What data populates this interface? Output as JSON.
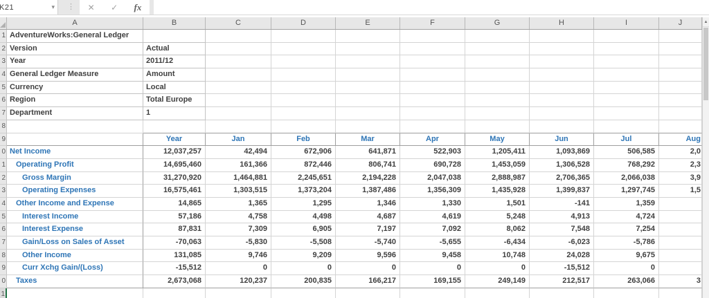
{
  "name_box": "K21",
  "formula_bar": {
    "cancel": "✕",
    "confirm": "✓",
    "fx": "fx",
    "value": ""
  },
  "column_headers": [
    "A",
    "B",
    "C",
    "D",
    "E",
    "F",
    "G",
    "H",
    "I",
    "J"
  ],
  "row_numbers_visible": [
    "1",
    "2",
    "3",
    "4",
    "5",
    "6",
    "7",
    "8",
    "9",
    "0",
    "1",
    "2",
    "3",
    "4",
    "5",
    "6",
    "7",
    "8",
    "9",
    "0",
    "1"
  ],
  "info": [
    {
      "label": "AdventureWorks:General Ledger",
      "value": ""
    },
    {
      "label": "Version",
      "value": "Actual"
    },
    {
      "label": "Year",
      "value": "2011/12"
    },
    {
      "label": "General Ledger Measure",
      "value": "Amount"
    },
    {
      "label": "Currency",
      "value": "Local"
    },
    {
      "label": "Region",
      "value": "Total Europe"
    },
    {
      "label": "Department",
      "value": "1"
    }
  ],
  "table": {
    "col_headers": [
      "Year",
      "Jan",
      "Feb",
      "Mar",
      "Apr",
      "May",
      "Jun",
      "Jul",
      "Aug"
    ],
    "rows": [
      {
        "label": "Net Income",
        "indent": 0,
        "values": [
          "12,037,257",
          "42,494",
          "672,906",
          "641,871",
          "522,903",
          "1,205,411",
          "1,093,869",
          "506,585",
          "2,0"
        ]
      },
      {
        "label": "Operating Profit",
        "indent": 1,
        "values": [
          "14,695,460",
          "161,366",
          "872,446",
          "806,741",
          "690,728",
          "1,453,059",
          "1,306,528",
          "768,292",
          "2,3"
        ]
      },
      {
        "label": "Gross Margin",
        "indent": 2,
        "values": [
          "31,270,920",
          "1,464,881",
          "2,245,651",
          "2,194,228",
          "2,047,038",
          "2,888,987",
          "2,706,365",
          "2,066,038",
          "3,9"
        ]
      },
      {
        "label": "Operating Expenses",
        "indent": 2,
        "values": [
          "16,575,461",
          "1,303,515",
          "1,373,204",
          "1,387,486",
          "1,356,309",
          "1,435,928",
          "1,399,837",
          "1,297,745",
          "1,5"
        ]
      },
      {
        "label": "Other Income and Expense",
        "indent": 1,
        "values": [
          "14,865",
          "1,365",
          "1,295",
          "1,346",
          "1,330",
          "1,501",
          "-141",
          "1,359",
          ""
        ]
      },
      {
        "label": "Interest Income",
        "indent": 2,
        "values": [
          "57,186",
          "4,758",
          "4,498",
          "4,687",
          "4,619",
          "5,248",
          "4,913",
          "4,724",
          ""
        ]
      },
      {
        "label": "Interest Expense",
        "indent": 2,
        "values": [
          "87,831",
          "7,309",
          "6,905",
          "7,197",
          "7,092",
          "8,062",
          "7,548",
          "7,254",
          ""
        ]
      },
      {
        "label": "Gain/Loss on Sales of Asset",
        "indent": 2,
        "values": [
          "-70,063",
          "-5,830",
          "-5,508",
          "-5,740",
          "-5,655",
          "-6,434",
          "-6,023",
          "-5,786",
          ""
        ]
      },
      {
        "label": "Other Income",
        "indent": 2,
        "values": [
          "131,085",
          "9,746",
          "9,209",
          "9,596",
          "9,458",
          "10,748",
          "24,028",
          "9,675",
          ""
        ]
      },
      {
        "label": "Curr Xchg Gain/(Loss)",
        "indent": 2,
        "values": [
          "-15,512",
          "0",
          "0",
          "0",
          "0",
          "0",
          "-15,512",
          "0",
          ""
        ]
      },
      {
        "label": "Taxes",
        "indent": 1,
        "values": [
          "2,673,068",
          "120,237",
          "200,835",
          "166,217",
          "169,155",
          "249,149",
          "212,517",
          "263,066",
          "3"
        ]
      }
    ]
  },
  "colors": {
    "accent_blue": "#2e75b6",
    "text_dark": "#3f3f3f",
    "selection_green": "#217346"
  }
}
